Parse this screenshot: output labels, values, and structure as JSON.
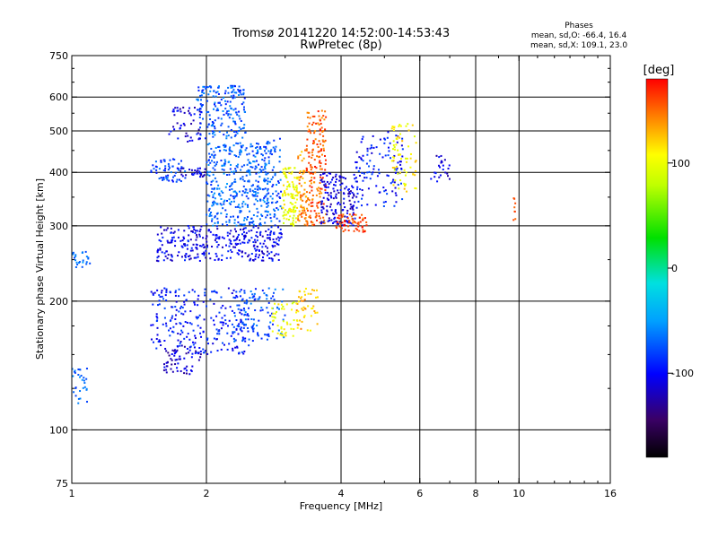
{
  "chart_data": {
    "type": "scatter",
    "title": "Tromsø 20141220 14:52:00-14:53:43",
    "subtitle": "RwPretec (8p)",
    "xlabel": "Frequency [MHz]",
    "ylabel": "Stationary phase Virtual Height [km]",
    "x_scale": "log",
    "y_scale": "log",
    "xlim": [
      1,
      16
    ],
    "ylim": [
      75,
      750
    ],
    "x_ticks": [
      {
        "value": 1,
        "label": "1"
      },
      {
        "value": 2,
        "label": "2"
      },
      {
        "value": 4,
        "label": "4"
      },
      {
        "value": 6,
        "label": "6"
      },
      {
        "value": 8,
        "label": "8"
      },
      {
        "value": 10,
        "label": "10"
      },
      {
        "value": 16,
        "label": "16"
      }
    ],
    "x_grid": [
      2,
      4,
      6,
      8,
      10
    ],
    "y_ticks": [
      {
        "value": 75,
        "label": "75"
      },
      {
        "value": 100,
        "label": "100"
      },
      {
        "value": 200,
        "label": "200"
      },
      {
        "value": 300,
        "label": "300"
      },
      {
        "value": 400,
        "label": "400"
      },
      {
        "value": 500,
        "label": "500"
      },
      {
        "value": 600,
        "label": "600"
      },
      {
        "value": 750,
        "label": "750"
      }
    ],
    "y_grid": [
      100,
      200,
      300,
      400,
      500,
      600
    ],
    "grid": true,
    "stats": {
      "heading": "Phases",
      "line_o": "mean, sd,O: -66.4, 16.4",
      "line_x": "mean, sd,X: 109.1, 23.0"
    },
    "colorbar": {
      "label": "[deg]",
      "range": [
        -180,
        180
      ],
      "ticks": [
        {
          "value": 100,
          "label": "100"
        },
        {
          "value": 0,
          "label": "0"
        },
        {
          "value": -100,
          "label": "-100"
        }
      ],
      "colormap": "rainbow"
    },
    "clusters": [
      {
        "fmin": 1.55,
        "fmax": 2.95,
        "hmin": 248,
        "hmax": 300,
        "phase": -105,
        "n": 320
      },
      {
        "fmin": 2.0,
        "fmax": 2.75,
        "hmin": 300,
        "hmax": 470,
        "phase": -70,
        "n": 380
      },
      {
        "fmin": 1.9,
        "fmax": 2.45,
        "hmin": 480,
        "hmax": 640,
        "phase": -75,
        "n": 180
      },
      {
        "fmin": 1.65,
        "fmax": 1.95,
        "hmin": 470,
        "hmax": 570,
        "phase": -110,
        "n": 50
      },
      {
        "fmin": 1.5,
        "fmax": 1.8,
        "hmin": 380,
        "hmax": 430,
        "phase": -80,
        "n": 60
      },
      {
        "fmin": 1.75,
        "fmax": 2.0,
        "hmin": 390,
        "hmax": 410,
        "phase": -110,
        "n": 30
      },
      {
        "fmin": 2.7,
        "fmax": 2.95,
        "hmin": 300,
        "hmax": 480,
        "phase": -75,
        "n": 90
      },
      {
        "fmin": 2.95,
        "fmax": 3.2,
        "hmin": 300,
        "hmax": 410,
        "phase": 100,
        "n": 110
      },
      {
        "fmin": 3.2,
        "fmax": 3.35,
        "hmin": 300,
        "hmax": 460,
        "phase": 140,
        "n": 60
      },
      {
        "fmin": 3.35,
        "fmax": 3.7,
        "hmin": 300,
        "hmax": 560,
        "phase": 155,
        "n": 180
      },
      {
        "fmin": 3.6,
        "fmax": 4.3,
        "hmin": 300,
        "hmax": 400,
        "phase": -110,
        "n": 150
      },
      {
        "fmin": 3.9,
        "fmax": 4.6,
        "hmin": 290,
        "hmax": 320,
        "phase": 160,
        "n": 60
      },
      {
        "fmin": 4.3,
        "fmax": 5.5,
        "hmin": 330,
        "hmax": 500,
        "phase": -95,
        "n": 120
      },
      {
        "fmin": 5.2,
        "fmax": 5.9,
        "hmin": 360,
        "hmax": 520,
        "phase": 110,
        "n": 70
      },
      {
        "fmin": 6.3,
        "fmax": 7.0,
        "hmin": 380,
        "hmax": 440,
        "phase": -110,
        "n": 25
      },
      {
        "fmin": 1.5,
        "fmax": 2.5,
        "hmin": 150,
        "hmax": 215,
        "phase": -95,
        "n": 260
      },
      {
        "fmin": 1.6,
        "fmax": 1.95,
        "hmin": 135,
        "hmax": 160,
        "phase": -115,
        "n": 60
      },
      {
        "fmin": 2.3,
        "fmax": 3.0,
        "hmin": 160,
        "hmax": 215,
        "phase": -75,
        "n": 110
      },
      {
        "fmin": 2.8,
        "fmax": 3.15,
        "hmin": 165,
        "hmax": 200,
        "phase": 100,
        "n": 40
      },
      {
        "fmin": 3.15,
        "fmax": 3.55,
        "hmin": 170,
        "hmax": 215,
        "phase": 125,
        "n": 50
      },
      {
        "fmin": 1.0,
        "fmax": 1.1,
        "hmin": 240,
        "hmax": 262,
        "phase": -70,
        "n": 25
      },
      {
        "fmin": 1.0,
        "fmax": 1.1,
        "hmin": 115,
        "hmax": 140,
        "phase": -70,
        "n": 30
      },
      {
        "fmin": 9.7,
        "fmax": 9.85,
        "hmin": 300,
        "hmax": 360,
        "phase": 160,
        "n": 8
      }
    ]
  }
}
